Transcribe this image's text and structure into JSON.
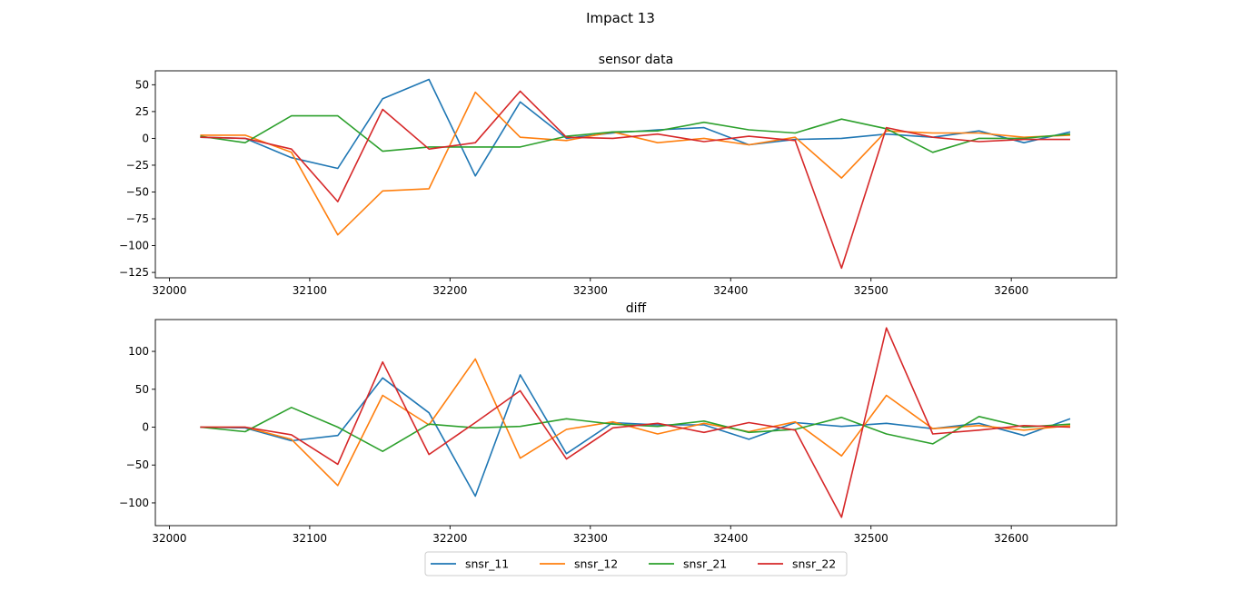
{
  "figure": {
    "suptitle": "Impact 13"
  },
  "legend": {
    "placement": "bottom-center",
    "entries": [
      {
        "label": "snsr_11",
        "color": "#1f77b4"
      },
      {
        "label": "snsr_12",
        "color": "#ff7f0e"
      },
      {
        "label": "snsr_21",
        "color": "#2ca02c"
      },
      {
        "label": "snsr_22",
        "color": "#d62728"
      }
    ]
  },
  "chart_data": [
    {
      "type": "line",
      "title": "sensor data",
      "xlabel": "",
      "ylabel": "",
      "xlim": [
        31990,
        32675
      ],
      "ylim": [
        -130,
        63
      ],
      "xticks": [
        32000,
        32100,
        32200,
        32300,
        32400,
        32500,
        32600
      ],
      "yticks": [
        -125,
        -100,
        -75,
        -50,
        -25,
        0,
        25,
        50
      ],
      "grid": false,
      "x": [
        32022,
        32054,
        32087,
        32120,
        32152,
        32185,
        32218,
        32250,
        32283,
        32316,
        32348,
        32381,
        32413,
        32446,
        32479,
        32511,
        32544,
        32577,
        32609,
        32642
      ],
      "series": [
        {
          "name": "snsr_11",
          "color": "#1f77b4",
          "values": [
            1,
            0,
            -18,
            -28,
            37,
            55,
            -35,
            34,
            0,
            5,
            8,
            10,
            -6,
            -1,
            0,
            4,
            1,
            7,
            -4,
            6
          ]
        },
        {
          "name": "snsr_12",
          "color": "#ff7f0e",
          "values": [
            3,
            3,
            -13,
            -90,
            -49,
            -47,
            43,
            1,
            -2,
            6,
            -4,
            0,
            -6,
            1,
            -37,
            7,
            5,
            5,
            1,
            3
          ]
        },
        {
          "name": "snsr_21",
          "color": "#2ca02c",
          "values": [
            2,
            -4,
            21,
            21,
            -12,
            -8,
            -8,
            -8,
            2,
            6,
            7,
            15,
            8,
            5,
            18,
            9,
            -13,
            0,
            0,
            4
          ]
        },
        {
          "name": "snsr_22",
          "color": "#d62728",
          "values": [
            1,
            0,
            -10,
            -59,
            27,
            -10,
            -4,
            44,
            1,
            0,
            4,
            -3,
            2,
            -2,
            -121,
            10,
            1,
            -3,
            -1,
            -1
          ]
        }
      ]
    },
    {
      "type": "line",
      "title": "diff",
      "xlabel": "",
      "ylabel": "",
      "xlim": [
        31990,
        32675
      ],
      "ylim": [
        -130,
        142
      ],
      "xticks": [
        32000,
        32100,
        32200,
        32300,
        32400,
        32500,
        32600
      ],
      "yticks": [
        -100,
        -50,
        0,
        50,
        100
      ],
      "grid": false,
      "x": [
        32022,
        32054,
        32087,
        32120,
        32152,
        32185,
        32218,
        32250,
        32283,
        32316,
        32348,
        32381,
        32413,
        32446,
        32479,
        32511,
        32544,
        32577,
        32609,
        32642
      ],
      "series": [
        {
          "name": "snsr_11",
          "color": "#1f77b4",
          "values": [
            0,
            -1,
            -18,
            -11,
            65,
            19,
            -91,
            69,
            -35,
            6,
            3,
            3,
            -16,
            6,
            1,
            5,
            -2,
            5,
            -11,
            11
          ]
        },
        {
          "name": "snsr_12",
          "color": "#ff7f0e",
          "values": [
            0,
            0,
            -16,
            -77,
            42,
            3,
            90,
            -41,
            -3,
            7,
            -9,
            5,
            -6,
            7,
            -38,
            42,
            -2,
            2,
            -4,
            2
          ]
        },
        {
          "name": "snsr_21",
          "color": "#2ca02c",
          "values": [
            0,
            -6,
            26,
            0,
            -32,
            4,
            -1,
            1,
            11,
            4,
            1,
            8,
            -7,
            -3,
            13,
            -9,
            -22,
            14,
            0,
            4
          ]
        },
        {
          "name": "snsr_22",
          "color": "#d62728",
          "values": [
            0,
            0,
            -10,
            -49,
            86,
            -36,
            6,
            48,
            -42,
            -1,
            5,
            -7,
            6,
            -4,
            -119,
            131,
            -9,
            -4,
            2,
            0
          ]
        }
      ]
    }
  ]
}
